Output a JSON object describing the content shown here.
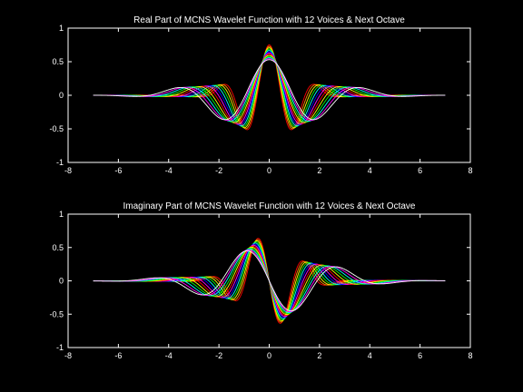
{
  "chart_data": [
    {
      "type": "line",
      "title": "Real Part of MCNS Wavelet Function with 12 Voices & Next Octave",
      "xlim": [
        -8,
        8
      ],
      "ylim": [
        -1,
        1
      ],
      "xticks": [
        -8,
        -6,
        -4,
        -2,
        0,
        2,
        4,
        6,
        8
      ],
      "yticks": [
        1,
        0.5,
        0,
        -0.5,
        -1
      ],
      "xtick_labels": [
        "-8",
        "-6",
        "-4",
        "-2",
        "0",
        "2",
        "4",
        "6",
        "8"
      ],
      "ytick_labels": [
        "1",
        "0.5",
        "0",
        "-0.5",
        "-1"
      ],
      "grid": false,
      "x_range": [
        -7,
        7
      ],
      "part": "real",
      "voices": 13,
      "peak_value": 0.75,
      "trough_value": -0.62,
      "colors": [
        "#ff0000",
        "#ff8800",
        "#ffff00",
        "#00ff00",
        "#00ffff",
        "#0000ff",
        "#ff00ff",
        "#ff0000",
        "#ffff00",
        "#00ff00",
        "#00ffff",
        "#ff00ff",
        "#ffffff"
      ]
    },
    {
      "type": "line",
      "title": "Imaginary Part of MCNS Wavelet Function with 12 Voices & Next Octave",
      "xlim": [
        -8,
        8
      ],
      "ylim": [
        -1,
        1
      ],
      "xticks": [
        -8,
        -6,
        -4,
        -2,
        0,
        2,
        4,
        6,
        8
      ],
      "yticks": [
        1,
        0.5,
        0,
        -0.5,
        -1
      ],
      "xtick_labels": [
        "-8",
        "-6",
        "-4",
        "-2",
        "0",
        "2",
        "4",
        "6",
        "8"
      ],
      "ytick_labels": [
        "1",
        "0.5",
        "0",
        "-0.5",
        "-1"
      ],
      "grid": false,
      "x_range": [
        -7,
        7
      ],
      "part": "imaginary",
      "voices": 13,
      "peak_value": 0.7,
      "trough_value": -0.7,
      "colors": [
        "#ff0000",
        "#ff8800",
        "#ffff00",
        "#00ff00",
        "#00ffff",
        "#0000ff",
        "#ff00ff",
        "#ff0000",
        "#ffff00",
        "#00ff00",
        "#00ffff",
        "#ff00ff",
        "#ffffff"
      ]
    }
  ]
}
